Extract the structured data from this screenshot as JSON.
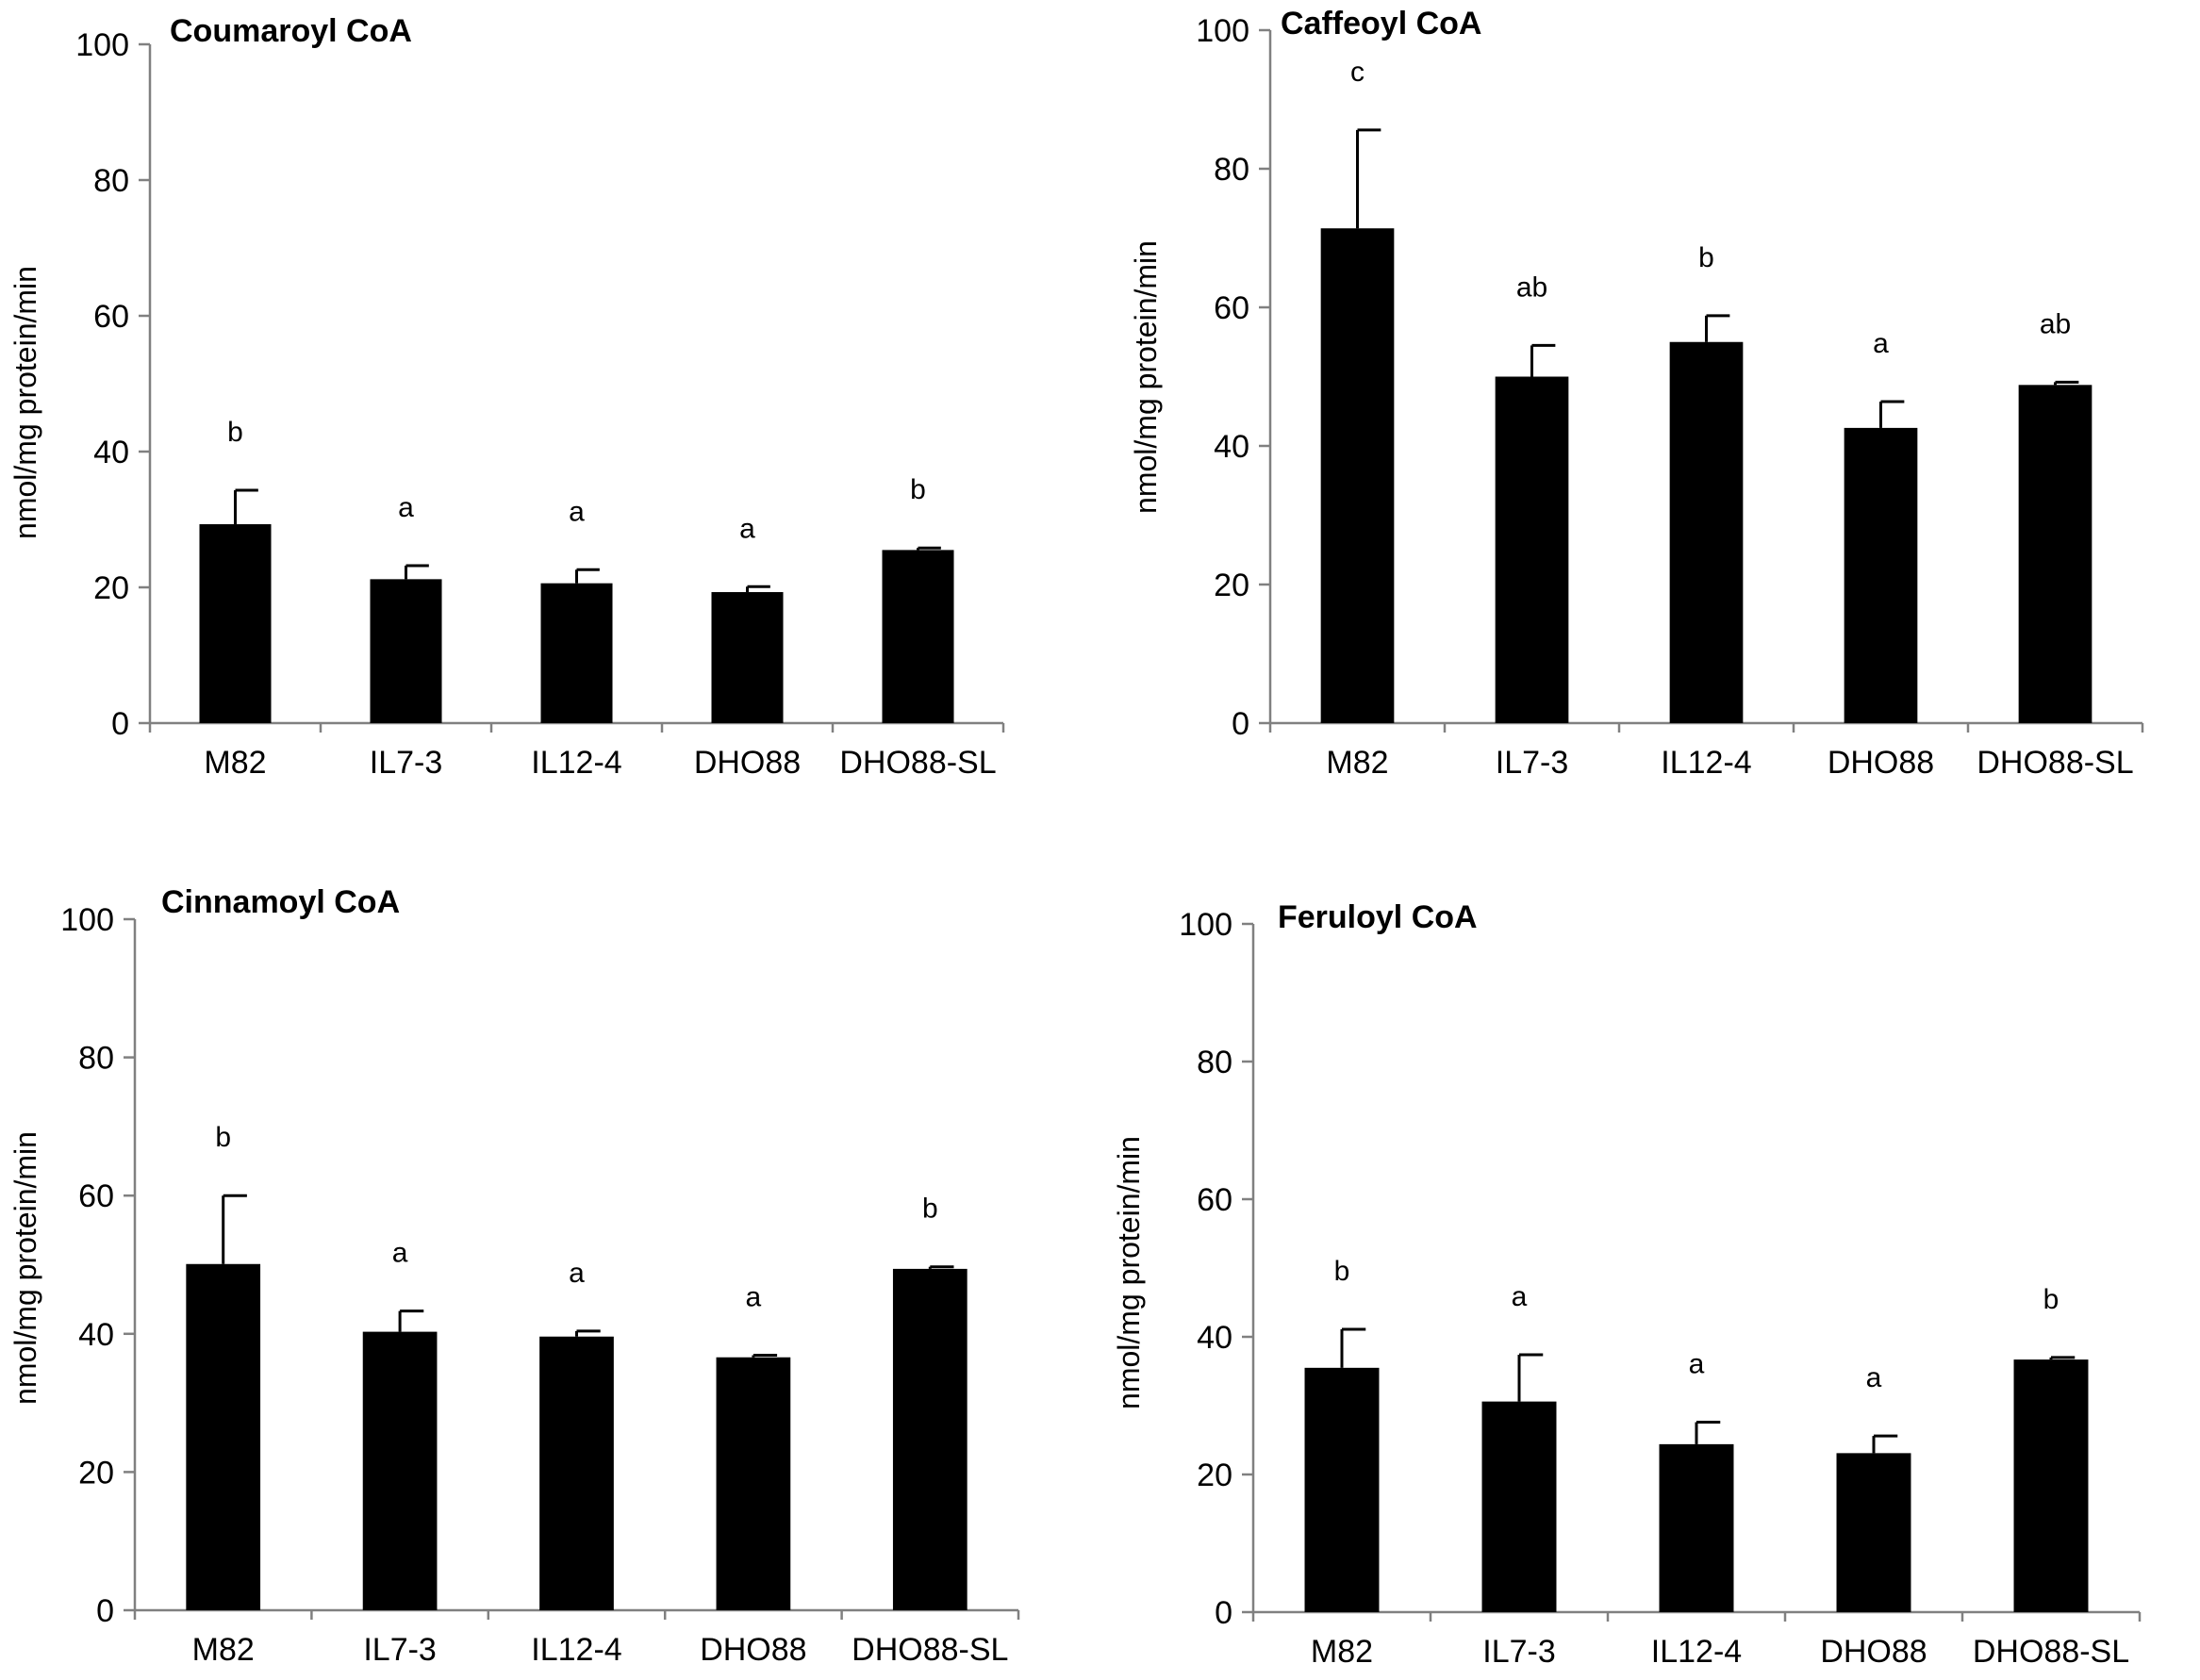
{
  "chart_data": [
    {
      "type": "bar",
      "title": "Coumaroyl CoA",
      "ylabel": "nmol/mg protein/min",
      "xlabel": "",
      "ylim": [
        0,
        100
      ],
      "yticks": [
        0,
        20,
        40,
        60,
        80,
        100
      ],
      "categories": [
        "M82",
        "IL7-3",
        "IL12-4",
        "DHO88",
        "DHO88-SL"
      ],
      "values": [
        29.3,
        21.2,
        20.6,
        19.3,
        25.5
      ],
      "errors": [
        5.0,
        2.0,
        2.0,
        0.8,
        0.3
      ],
      "significance": [
        "b",
        "a",
        "a",
        "a",
        "b"
      ]
    },
    {
      "type": "bar",
      "title": "Caffeoyl CoA",
      "ylabel": "nmol/mg protein/min",
      "xlabel": "",
      "ylim": [
        0,
        100
      ],
      "yticks": [
        0,
        20,
        40,
        60,
        80,
        100
      ],
      "categories": [
        "M82",
        "IL7-3",
        "IL12-4",
        "DHO88",
        "DHO88-SL"
      ],
      "values": [
        71.4,
        50.0,
        55.0,
        42.6,
        48.8
      ],
      "errors": [
        14.2,
        4.5,
        3.8,
        3.8,
        0.4
      ],
      "significance": [
        "c",
        "ab",
        "b",
        "a",
        "ab"
      ]
    },
    {
      "type": "bar",
      "title": "Cinnamoyl CoA",
      "ylabel": "nmol/mg protein/min",
      "xlabel": "",
      "ylim": [
        0,
        100
      ],
      "yticks": [
        0,
        20,
        40,
        60,
        80,
        100
      ],
      "categories": [
        "M82",
        "IL7-3",
        "IL12-4",
        "DHO88",
        "DHO88-SL"
      ],
      "values": [
        50.1,
        40.3,
        39.6,
        36.6,
        49.4
      ],
      "errors": [
        9.9,
        3.0,
        0.8,
        0.3,
        0.3
      ],
      "significance": [
        "b",
        "a",
        "a",
        "a",
        "b"
      ]
    },
    {
      "type": "bar",
      "title": "Feruloyl CoA",
      "ylabel": "nmol/mg protein/min",
      "xlabel": "",
      "ylim": [
        0,
        100
      ],
      "yticks": [
        0,
        20,
        40,
        60,
        80,
        100
      ],
      "categories": [
        "M82",
        "IL7-3",
        "IL12-4",
        "DHO88",
        "DHO88-SL"
      ],
      "values": [
        35.5,
        30.6,
        24.4,
        23.1,
        36.7
      ],
      "errors": [
        5.6,
        6.8,
        3.2,
        2.5,
        0.3
      ],
      "significance": [
        "b",
        "a",
        "a",
        "a",
        "b"
      ]
    }
  ]
}
